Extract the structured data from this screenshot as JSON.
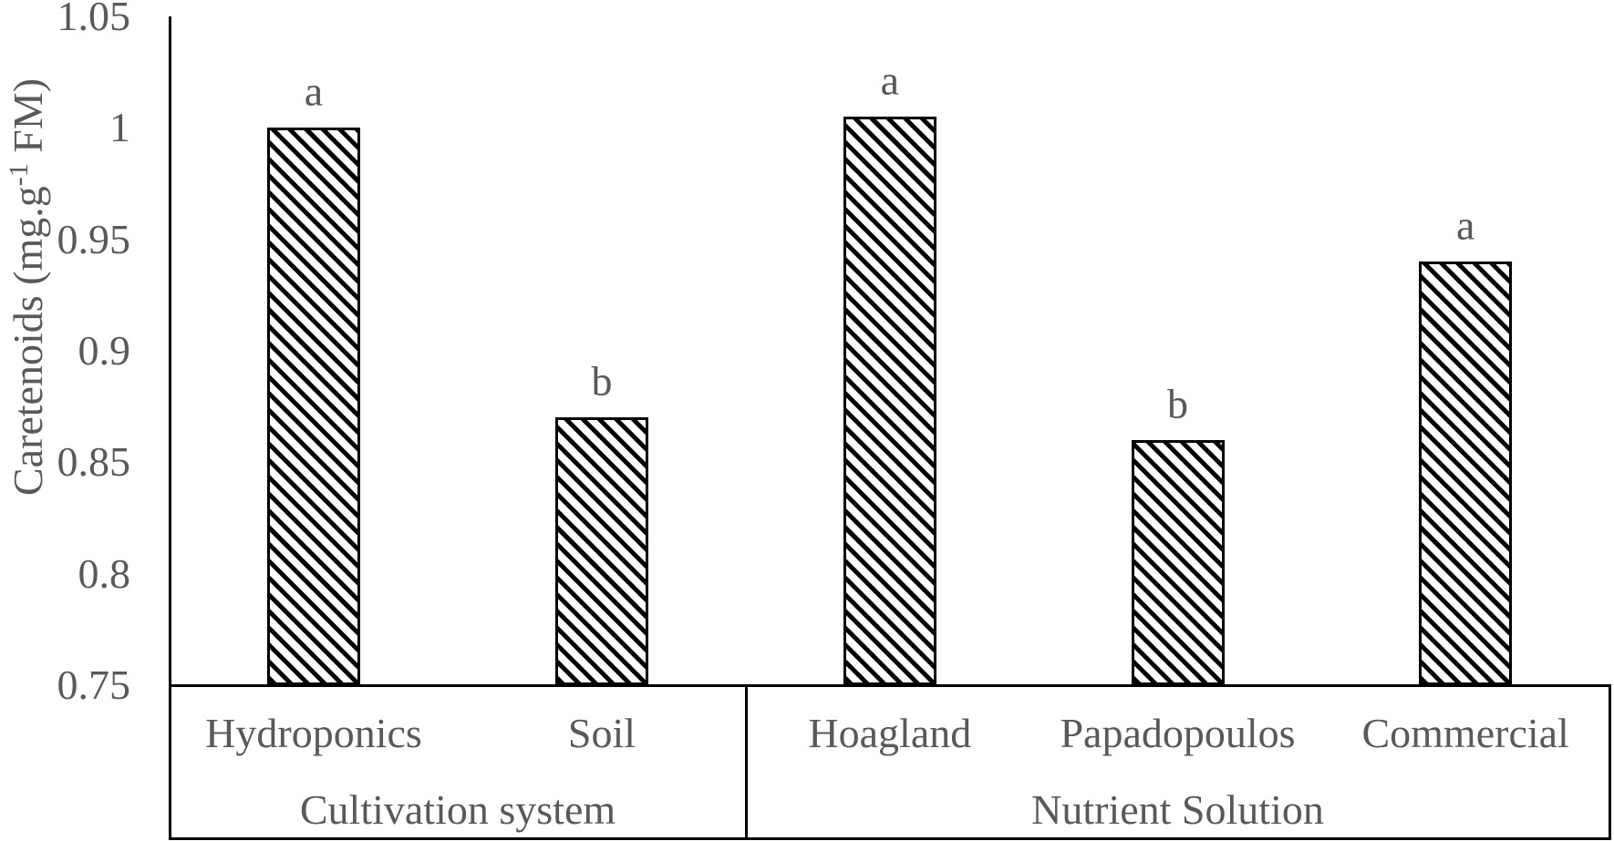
{
  "chart_data": {
    "type": "bar",
    "title": "",
    "ylabel": {
      "full": "Caretenoids (mg.g-1 FM)",
      "prefix": "Caretenoids (mg.g",
      "superscript": "-1",
      "suffix": " FM)"
    },
    "xlabel": "",
    "ylim": [
      0.75,
      1.05
    ],
    "ytick_step": 0.05,
    "yticks": [
      0.75,
      0.8,
      0.85,
      0.9,
      0.95,
      1.0,
      1.05
    ],
    "ytick_labels": [
      "0.75",
      "0.8",
      "0.85",
      "0.9",
      "0.95",
      "1",
      "1.05"
    ],
    "grid": false,
    "legend": "none",
    "groups": [
      {
        "label": "Cultivation system",
        "categories": [
          "Hydroponics",
          "Soil"
        ],
        "values": [
          1.0,
          0.87
        ],
        "sig_letters": [
          "a",
          "b"
        ]
      },
      {
        "label": "Nutrient Solution",
        "categories": [
          "Hoagland",
          "Papadopoulos",
          "Commercial"
        ],
        "values": [
          1.005,
          0.86,
          0.94
        ],
        "sig_letters": [
          "a",
          "b",
          "a"
        ]
      }
    ],
    "styles": {
      "text_color": "#595959",
      "axis_color": "#000000",
      "bar_fill": "#ffffff",
      "bar_hatch_color": "#000000",
      "bar_hatch_pattern": "diagonal-backslash",
      "bar_border_color": "#000000"
    }
  }
}
